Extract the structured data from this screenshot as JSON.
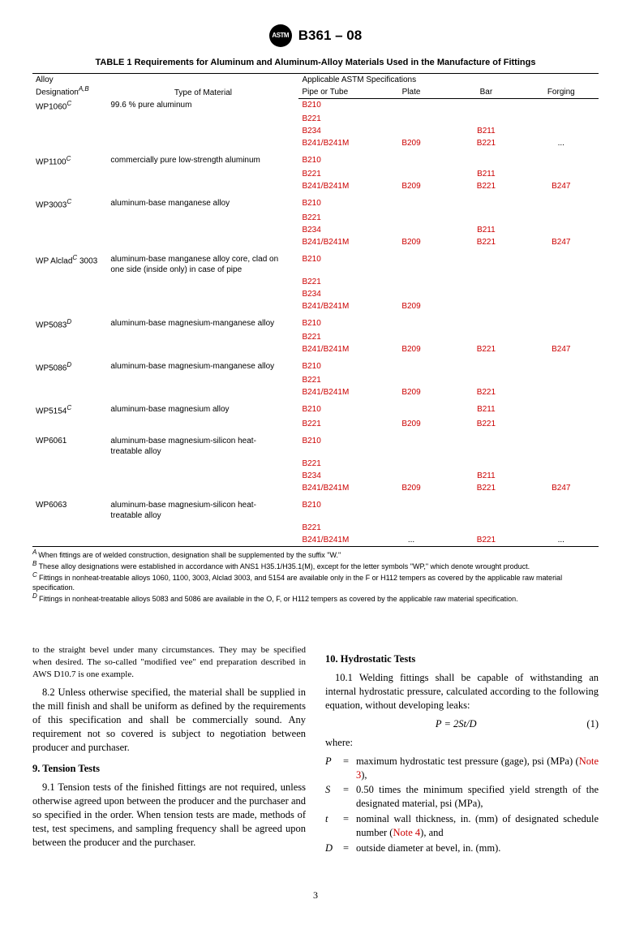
{
  "header": {
    "logo_text": "ASTM",
    "designation": "B361 – 08"
  },
  "table": {
    "title": "TABLE 1 Requirements for Aluminum and Aluminum-Alloy Materials Used in the Manufacture of Fittings",
    "head": {
      "alloy": "Alloy Designation",
      "alloy_sup": "A,B",
      "type": "Type of Material",
      "applicable": "Applicable ASTM Specifications",
      "pipe": "Pipe or Tube",
      "plate": "Plate",
      "bar": "Bar",
      "forging": "Forging"
    },
    "groups": [
      {
        "alloy": "WP1060",
        "sup": "C",
        "type": "99.6 % pure aluminum",
        "rows": [
          {
            "pipe": "B210",
            "plate": "",
            "bar": "",
            "forging": ""
          },
          {
            "pipe": "B221",
            "plate": "",
            "bar": "",
            "forging": ""
          },
          {
            "pipe": "B234",
            "plate": "",
            "bar": "B211",
            "forging": ""
          },
          {
            "pipe": "B241/B241M",
            "plate": "B209",
            "bar": "B221",
            "forging": "..."
          }
        ]
      },
      {
        "alloy": "WP1100",
        "sup": "C",
        "type": "commercially pure low-strength aluminum",
        "rows": [
          {
            "pipe": "B210",
            "plate": "",
            "bar": "",
            "forging": ""
          },
          {
            "pipe": "B221",
            "plate": "",
            "bar": "B211",
            "forging": ""
          },
          {
            "pipe": "B241/B241M",
            "plate": "B209",
            "bar": "B221",
            "forging": "B247"
          }
        ]
      },
      {
        "alloy": "WP3003",
        "sup": "C",
        "type": "aluminum-base manganese alloy",
        "rows": [
          {
            "pipe": "B210",
            "plate": "",
            "bar": "",
            "forging": ""
          },
          {
            "pipe": "B221",
            "plate": "",
            "bar": "",
            "forging": ""
          },
          {
            "pipe": "B234",
            "plate": "",
            "bar": "B211",
            "forging": ""
          },
          {
            "pipe": "B241/B241M",
            "plate": "B209",
            "bar": "B221",
            "forging": "B247"
          }
        ]
      },
      {
        "alloy": "WP Alclad",
        "sup": "C",
        "alloy_suffix": " 3003",
        "type": "aluminum-base manganese alloy core, clad on one side (inside only) in case of pipe",
        "rows": [
          {
            "pipe": "B210",
            "plate": "",
            "bar": "",
            "forging": ""
          },
          {
            "pipe": "B221",
            "plate": "",
            "bar": "",
            "forging": ""
          },
          {
            "pipe": "B234",
            "plate": "",
            "bar": "",
            "forging": ""
          },
          {
            "pipe": "B241/B241M",
            "plate": "B209",
            "bar": "",
            "forging": ""
          }
        ]
      },
      {
        "alloy": "WP5083",
        "sup": "D",
        "type": "aluminum-base magnesium-manganese alloy",
        "rows": [
          {
            "pipe": "B210",
            "plate": "",
            "bar": "",
            "forging": ""
          },
          {
            "pipe": " B221",
            "plate": "",
            "bar": "",
            "forging": ""
          },
          {
            "pipe": "B241/B241M",
            "plate": "B209",
            "bar": "B221",
            "forging": "B247"
          }
        ]
      },
      {
        "alloy": "WP5086",
        "sup": "D",
        "type": "aluminum-base magnesium-manganese alloy",
        "rows": [
          {
            "pipe": "B210",
            "plate": "",
            "bar": "",
            "forging": ""
          },
          {
            "pipe": "B221",
            "plate": "",
            "bar": "",
            "forging": ""
          },
          {
            "pipe": "B241/B241M",
            "plate": "B209",
            "bar": "B221",
            "forging": ""
          }
        ]
      },
      {
        "alloy": "WP5154",
        "sup": "C",
        "type": "aluminum-base magnesium alloy",
        "rows": [
          {
            "pipe": "B210",
            "plate": "",
            "bar": "B211",
            "forging": ""
          },
          {
            "pipe": "B221",
            "plate": "B209",
            "bar": "B221",
            "forging": ""
          }
        ]
      },
      {
        "alloy": "WP6061",
        "sup": "",
        "type": "aluminum-base magnesium-silicon heat-treatable alloy",
        "rows": [
          {
            "pipe": "B210",
            "plate": "",
            "bar": "",
            "forging": ""
          },
          {
            "pipe": "B221",
            "plate": "",
            "bar": "",
            "forging": ""
          },
          {
            "pipe": "B234",
            "plate": "",
            "bar": "B211",
            "forging": ""
          },
          {
            "pipe": "B241/B241M",
            "plate": "B209",
            "bar": "B221",
            "forging": "B247"
          }
        ]
      },
      {
        "alloy": "WP6063",
        "sup": "",
        "type": "aluminum-base magnesium-silicon heat-treatable alloy",
        "rows": [
          {
            "pipe": "B210",
            "plate": "",
            "bar": "",
            "forging": ""
          },
          {
            "pipe": "B221",
            "plate": "",
            "bar": "",
            "forging": ""
          },
          {
            "pipe": "B241/B241M",
            "plate": "...",
            "bar": "B221",
            "forging": "..."
          }
        ]
      }
    ],
    "footnotes": {
      "A": "When fittings are of welded construction, designation shall be supplemented by the suffix \"W.\"",
      "B": "These alloy designations were established in accordance with ANS1 H35.1/H35.1(M), except for the letter symbols \"WP,\" which denote wrought product.",
      "C": "Fittings in nonheat-treatable alloys 1060, 1100, 3003, Alclad 3003, and 5154 are available only in the F or H112 tempers as covered by the applicable raw material specification.",
      "D": "Fittings in nonheat-treatable alloys 5083 and 5086 are available in the O, F, or H112 tempers as covered by the applicable raw material specification."
    }
  },
  "body": {
    "left": {
      "p0": "to the straight bevel under many circumstances. They may be specified when desired. The so-called \"modified vee\" end preparation described in AWS D10.7 is one example.",
      "p1": "8.2 Unless otherwise specified, the material shall be supplied in the mill finish and shall be uniform as defined by the requirements of this specification and shall be commercially sound. Any requirement not so covered is subject to negotiation between producer and purchaser.",
      "h9": "9. Tension Tests",
      "p9_1": "9.1 Tension tests of the finished fittings are not required, unless otherwise agreed upon between the producer and the purchaser and so specified in the order. When tension tests are made, methods of test, test specimens, and sampling frequency shall be agreed upon between the producer and the purchaser."
    },
    "right": {
      "h10": "10. Hydrostatic Tests",
      "p10_1a": "10.1 Welding fittings shall be capable of withstanding an internal hydrostatic pressure, calculated according to the following equation, without developing leaks:",
      "eq": "P = 2St/D",
      "eq_num": "(1)",
      "where": "where:",
      "defs": [
        {
          "sym": "P",
          "txt_a": "maximum hydrostatic test pressure (gage), psi (MPa) (",
          "note": "Note 3",
          "txt_b": "),"
        },
        {
          "sym": "S",
          "txt_a": "0.50 times the minimum specified yield strength of the designated material, psi (MPa),",
          "note": "",
          "txt_b": ""
        },
        {
          "sym": "t",
          "txt_a": "nominal wall thickness, in. (mm) of designated schedule number (",
          "note": "Note 4",
          "txt_b": "), and"
        },
        {
          "sym": "D",
          "txt_a": "outside diameter at bevel, in. (mm).",
          "note": "",
          "txt_b": ""
        }
      ]
    }
  },
  "page_num": "3"
}
